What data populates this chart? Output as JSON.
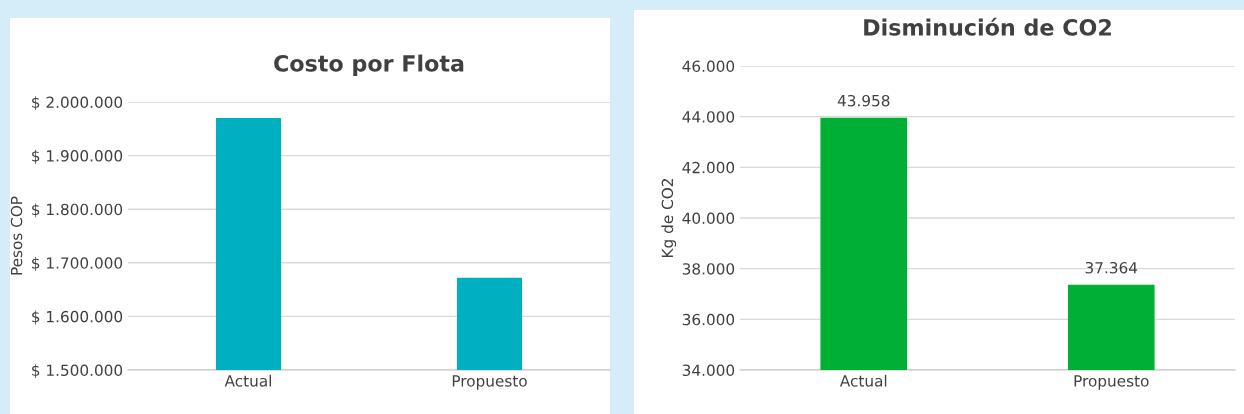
{
  "chart_data": [
    {
      "type": "bar",
      "title": "Costo por Flota",
      "ylabel": "Pesos COP",
      "categories": [
        "Actual",
        "Propuesto"
      ],
      "values": [
        1970000,
        1672000
      ],
      "color": "#00b0c0",
      "ylim": [
        1500000,
        2000000
      ],
      "yticks": [
        {
          "value": 1500000,
          "label": "$ 1.500.000"
        },
        {
          "value": 1600000,
          "label": "$ 1.600.000"
        },
        {
          "value": 1700000,
          "label": "$ 1.700.000"
        },
        {
          "value": 1800000,
          "label": "$ 1.800.000"
        },
        {
          "value": 1900000,
          "label": "$ 1.900.000"
        },
        {
          "value": 2000000,
          "label": "$ 2.000.000"
        }
      ],
      "grid": "y"
    },
    {
      "type": "bar",
      "title": "Disminución de CO2",
      "ylabel": "Kg de CO2",
      "categories": [
        "Actual",
        "Propuesto"
      ],
      "values": [
        43958,
        37364
      ],
      "value_labels": [
        "43.958",
        "37.364"
      ],
      "color": "#00b034",
      "ylim": [
        34000,
        46000
      ],
      "yticks": [
        {
          "value": 34000,
          "label": "34.000"
        },
        {
          "value": 36000,
          "label": "36.000"
        },
        {
          "value": 38000,
          "label": "38.000"
        },
        {
          "value": 40000,
          "label": "40.000"
        },
        {
          "value": 42000,
          "label": "42.000"
        },
        {
          "value": 44000,
          "label": "44.000"
        },
        {
          "value": 46000,
          "label": "46.000"
        }
      ],
      "grid": "y"
    }
  ]
}
